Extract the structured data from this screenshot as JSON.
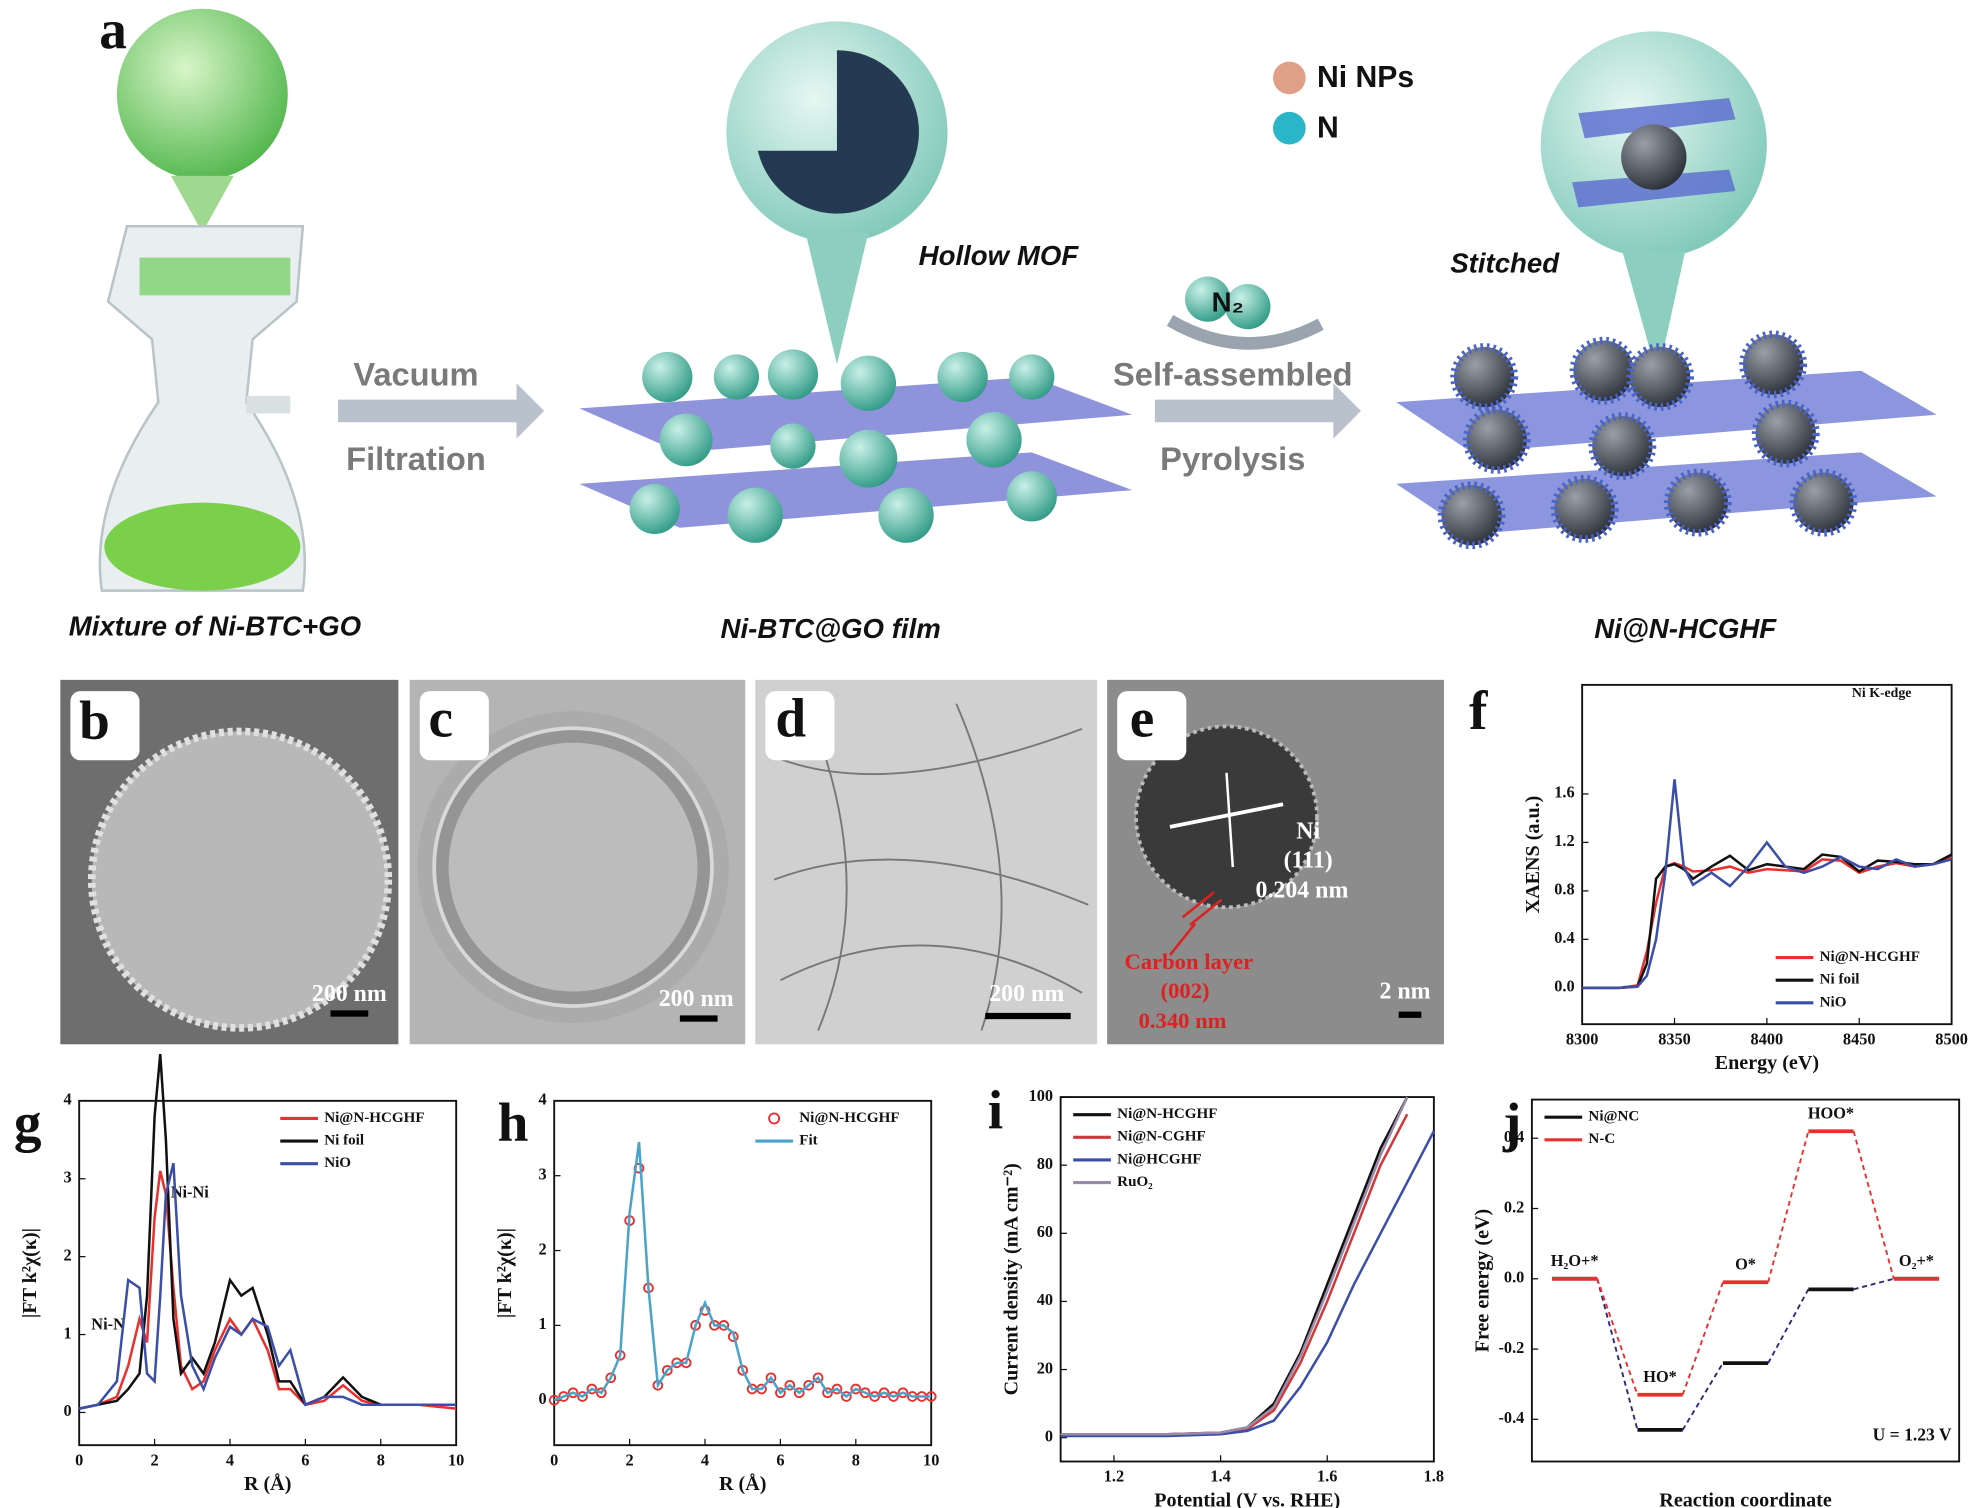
{
  "panel_labels": [
    "a",
    "b",
    "c",
    "d",
    "e",
    "f",
    "g",
    "h",
    "i",
    "j"
  ],
  "schematic": {
    "legend": [
      "Ni NPs",
      "N"
    ],
    "hollow_label": "Hollow MOF",
    "step1": [
      "Vacuum",
      "Filtration"
    ],
    "gas": "N₂",
    "step2": [
      "Self-assembled",
      "Pyrolysis"
    ],
    "stitched": "Stitched",
    "captions": [
      "Mixture of Ni-BTC+GO",
      "Ni-BTC@GO film",
      "Ni@N-HCGHF"
    ]
  },
  "micrographs": [
    {
      "scale_bar": "200 nm"
    },
    {
      "scale_bar": "200 nm"
    },
    {
      "scale_bar": "200 nm"
    },
    {
      "scale_bar": "2 nm",
      "annotations": [
        "Ni",
        "(111)",
        "0.204 nm",
        "Carbon layer",
        "(002)",
        "0.340 nm"
      ]
    }
  ],
  "chart_data": [
    {
      "type": "line",
      "xlabel": "Energy (eV)",
      "ylabel": "XAENS (a.u.)",
      "annotations": [
        "Ni K-edge"
      ],
      "legend": "lower right",
      "x": [
        8300,
        8320,
        8330,
        8335,
        8340,
        8345,
        8350,
        8355,
        8360,
        8370,
        8380,
        8390,
        8400,
        8410,
        8420,
        8430,
        8440,
        8450,
        8460,
        8470,
        8480,
        8490,
        8500
      ],
      "series": [
        {
          "name": "Ni@N-HCGHF",
          "color": "#e8312f",
          "values": [
            0,
            0,
            0.02,
            0.3,
            0.7,
            1.0,
            1.03,
            1.0,
            0.96,
            0.97,
            1.0,
            0.95,
            0.98,
            0.97,
            0.96,
            1.06,
            1.05,
            0.95,
            1.0,
            1.03,
            1.0,
            1.02,
            1.08
          ]
        },
        {
          "name": "Ni foil",
          "color": "#111111",
          "values": [
            0,
            0,
            0.01,
            0.2,
            0.9,
            1.0,
            1.02,
            0.98,
            0.9,
            1.0,
            1.09,
            0.97,
            1.02,
            1.0,
            0.98,
            1.1,
            1.08,
            0.96,
            1.05,
            1.04,
            1.02,
            1.02,
            1.1
          ]
        },
        {
          "name": "NiO",
          "color": "#3b4fa8",
          "values": [
            0,
            0,
            0.01,
            0.1,
            0.4,
            0.95,
            1.72,
            1.0,
            0.85,
            0.95,
            0.84,
            1.0,
            1.2,
            1.0,
            0.95,
            1.0,
            1.08,
            1.0,
            0.98,
            1.06,
            1.0,
            1.02,
            1.06
          ]
        }
      ],
      "xlim": [
        8300,
        8500
      ],
      "ylim": [
        -0.3,
        2.5
      ],
      "xticks": [
        8300,
        8350,
        8400,
        8450,
        8500
      ],
      "yticks": [
        {
          "value": 0,
          "label": "0.0"
        },
        0.4,
        0.8,
        1.2,
        1.6
      ]
    },
    {
      "type": "line",
      "xlabel": "R (Å)",
      "ylabel": "|FT k²χ(κ)|",
      "annotations": [
        "Ni-Ni",
        "Ni-N"
      ],
      "legend": "upper right",
      "x": [
        0,
        0.5,
        1,
        1.3,
        1.6,
        1.8,
        2.0,
        2.15,
        2.3,
        2.5,
        2.7,
        3.0,
        3.3,
        3.6,
        4.0,
        4.3,
        4.6,
        5.0,
        5.3,
        5.6,
        6.0,
        6.5,
        7.0,
        7.5,
        8,
        9,
        10
      ],
      "series": [
        {
          "name": "Ni@N-HCGHF",
          "color": "#e8312f",
          "values": [
            0.05,
            0.1,
            0.2,
            0.6,
            1.2,
            0.9,
            2.5,
            3.1,
            2.8,
            1.6,
            0.6,
            0.3,
            0.4,
            0.8,
            1.2,
            1.0,
            1.2,
            0.8,
            0.3,
            0.3,
            0.1,
            0.15,
            0.35,
            0.15,
            0.1,
            0.1,
            0.05
          ]
        },
        {
          "name": "Ni foil",
          "color": "#111111",
          "values": [
            0.05,
            0.1,
            0.15,
            0.3,
            0.5,
            1.5,
            3.8,
            4.6,
            3.5,
            1.2,
            0.5,
            0.7,
            0.5,
            0.9,
            1.7,
            1.5,
            1.6,
            1.0,
            0.4,
            0.4,
            0.1,
            0.2,
            0.45,
            0.2,
            0.1,
            0.1,
            0.1
          ]
        },
        {
          "name": "NiO",
          "color": "#3b4fa8",
          "values": [
            0.05,
            0.1,
            0.4,
            1.7,
            1.6,
            0.5,
            0.4,
            1.5,
            2.8,
            3.2,
            1.5,
            0.6,
            0.3,
            0.7,
            1.1,
            1.0,
            1.2,
            1.1,
            0.6,
            0.8,
            0.1,
            0.2,
            0.2,
            0.1,
            0.1,
            0.1,
            0.1
          ]
        }
      ],
      "xlim": [
        0,
        10
      ],
      "ylim": [
        -0.42,
        4.0
      ],
      "xticks": [
        0,
        2,
        4,
        6,
        8,
        10
      ],
      "yticks": [
        0,
        1,
        2,
        3,
        4
      ]
    },
    {
      "type": "line",
      "xlabel": "R (Å)",
      "ylabel": "|FT k²χ(κ)|",
      "legend": "upper right",
      "x": [
        0,
        0.25,
        0.5,
        0.75,
        1,
        1.25,
        1.5,
        1.75,
        2,
        2.25,
        2.5,
        2.75,
        3,
        3.25,
        3.5,
        3.75,
        4,
        4.25,
        4.5,
        4.75,
        5,
        5.25,
        5.5,
        5.75,
        6,
        6.25,
        6.5,
        6.75,
        7,
        7.25,
        7.5,
        7.75,
        8,
        8.25,
        8.5,
        8.75,
        9,
        9.25,
        9.5,
        9.75,
        10
      ],
      "series": [
        {
          "name": "Ni@N-HCGHF",
          "color": "#e8312f",
          "mode": "markers",
          "values": [
            0,
            0.05,
            0.1,
            0.05,
            0.15,
            0.1,
            0.3,
            0.6,
            2.4,
            3.1,
            1.5,
            0.2,
            0.4,
            0.5,
            0.5,
            1.0,
            1.2,
            1.0,
            1.0,
            0.85,
            0.4,
            0.15,
            0.15,
            0.3,
            0.1,
            0.2,
            0.1,
            0.2,
            0.3,
            0.1,
            0.15,
            0.05,
            0.15,
            0.1,
            0.05,
            0.1,
            0.05,
            0.1,
            0.05,
            0.05,
            0.05
          ]
        },
        {
          "name": "Fit",
          "color": "#4aa3c8",
          "mode": "line",
          "values": [
            0,
            0.05,
            0.1,
            0.05,
            0.15,
            0.1,
            0.3,
            0.6,
            2.5,
            3.45,
            1.5,
            0.2,
            0.4,
            0.5,
            0.5,
            1.0,
            1.3,
            1.0,
            1.0,
            0.9,
            0.4,
            0.15,
            0.15,
            0.3,
            0.1,
            0.2,
            0.1,
            0.2,
            0.3,
            0.1,
            0.15,
            0.05,
            0.15,
            0.1,
            0.05,
            0.1,
            0.05,
            0.1,
            0.05,
            0.05,
            0.05
          ]
        }
      ],
      "xlim": [
        0,
        10
      ],
      "ylim": [
        -0.6,
        4.0
      ],
      "xticks": [
        0,
        2,
        4,
        6,
        8,
        10
      ],
      "yticks": [
        0,
        1,
        2,
        3,
        4
      ]
    },
    {
      "type": "line",
      "xlabel": "Potential (V vs. RHE)",
      "ylabel": "Current density (mA cm⁻²)",
      "legend": "upper left",
      "x": [
        1.1,
        1.2,
        1.3,
        1.4,
        1.45,
        1.5,
        1.55,
        1.6,
        1.65,
        1.7,
        1.75,
        1.8
      ],
      "series": [
        {
          "name": "Ni@N-HCGHF",
          "color": "#111111",
          "values": [
            1,
            1,
            1,
            1.5,
            3,
            10,
            25,
            45,
            65,
            85,
            100,
            null
          ]
        },
        {
          "name": "Ni@N-CGHF",
          "color": "#d0383a",
          "values": [
            1,
            1,
            1,
            1.5,
            2.5,
            8,
            22,
            40,
            60,
            80,
            95,
            null
          ]
        },
        {
          "name": "Ni@HCGHF",
          "color": "#3b4fa8",
          "values": [
            0.5,
            0.5,
            0.5,
            1,
            2,
            5,
            15,
            28,
            45,
            60,
            75,
            90
          ]
        },
        {
          "name": "RuO₂",
          "color": "#9a8aa8",
          "values": [
            1,
            1,
            1,
            1.5,
            3,
            9,
            24,
            43,
            63,
            83,
            100,
            null
          ]
        }
      ],
      "xlim": [
        1.1,
        1.8
      ],
      "ylim": [
        -7,
        100
      ],
      "xticks": [
        1.2,
        1.4,
        1.6,
        1.8
      ],
      "yticks": [
        0,
        20,
        40,
        60,
        80,
        100
      ]
    },
    {
      "type": "energy_diagram",
      "xlabel": "Reaction coordinate",
      "ylabel": "Free energy (eV)",
      "annotations": [
        "U = 1.23 V"
      ],
      "legend": "upper left",
      "categories": [
        "H₂O+*",
        "HO*",
        "O*",
        "HOO*",
        "O₂+*"
      ],
      "series": [
        {
          "name": "Ni@NC",
          "color": "#111111",
          "values": [
            0,
            -0.43,
            -0.24,
            -0.03,
            0
          ]
        },
        {
          "name": "N-C",
          "color": "#e8312f",
          "values": [
            0,
            -0.33,
            -0.01,
            0.42,
            0
          ]
        }
      ],
      "ylim": [
        -0.52,
        0.51
      ],
      "yticks": [
        -0.4,
        -0.2,
        {
          "value": 0,
          "label": "0.0"
        },
        0.2,
        0.4
      ]
    }
  ]
}
